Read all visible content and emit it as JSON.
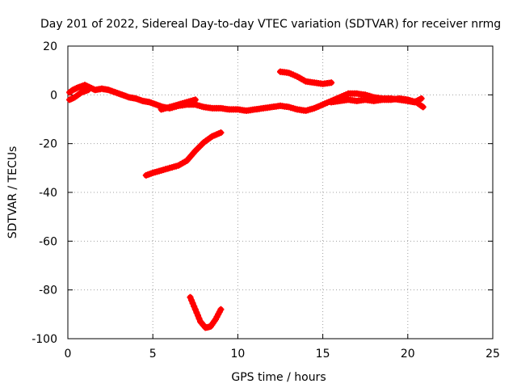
{
  "chart_data": {
    "type": "scatter",
    "title": "Day 201 of 2022, Sidereal Day-to-day VTEC variation (SDTVAR) for receiver nrmg",
    "xlabel": "GPS time / hours",
    "ylabel": "SDTVAR / TECUs",
    "xlim": [
      0,
      25
    ],
    "ylim": [
      -100,
      20
    ],
    "xticks": [
      0,
      5,
      10,
      15,
      20,
      25
    ],
    "yticks": [
      -100,
      -80,
      -60,
      -40,
      -20,
      0,
      20
    ],
    "grid": true,
    "marker": "+",
    "color": "#ff0000",
    "series": [
      {
        "name": "main-track",
        "x": [
          0.1,
          0.3,
          0.6,
          1.0,
          1.3,
          1.6,
          2.0,
          2.4,
          2.8,
          3.2,
          3.6,
          4.0,
          4.4,
          4.8,
          5.2,
          5.6,
          6.0,
          6.5,
          7.0,
          7.5,
          8.0,
          8.5,
          9.0,
          9.5,
          10.0,
          10.5,
          11.0,
          11.5,
          12.0,
          12.5,
          13.0,
          13.5,
          14.0,
          14.5,
          15.0,
          15.5,
          16.0,
          16.5,
          17.0,
          17.5,
          18.0,
          18.5,
          19.0,
          19.5,
          20.0,
          20.4,
          20.8
        ],
        "y": [
          1,
          2,
          3,
          4,
          3,
          2,
          2.5,
          2,
          1,
          0,
          -1,
          -1.5,
          -2.5,
          -3,
          -4,
          -5,
          -5.5,
          -4.5,
          -4,
          -4,
          -5,
          -5.5,
          -5.5,
          -6,
          -6,
          -6.5,
          -6,
          -5.5,
          -5,
          -4.5,
          -5,
          -6,
          -6.5,
          -5.5,
          -4,
          -2.5,
          -1,
          0.5,
          0.5,
          0,
          -1,
          -1.5,
          -1.5,
          -2,
          -2.5,
          -3,
          -1.5
        ]
      },
      {
        "name": "early-lower-band",
        "x": [
          0.1,
          0.4,
          0.8,
          1.2
        ],
        "y": [
          -2,
          -1,
          1,
          2
        ]
      },
      {
        "name": "evening-lower-band",
        "x": [
          5.5,
          6.0,
          6.5,
          7.0,
          7.5
        ],
        "y": [
          -6,
          -5,
          -4,
          -3,
          -2
        ]
      },
      {
        "name": "late-afternoon-loop",
        "x": [
          15.5,
          16.0,
          16.5,
          17.0,
          17.5,
          18.0,
          18.5,
          19.0,
          19.5,
          20.0,
          20.5,
          20.9
        ],
        "y": [
          -3,
          -2.5,
          -2,
          -2.5,
          -2,
          -2.5,
          -2,
          -2,
          -1.5,
          -2,
          -3,
          -5
        ]
      },
      {
        "name": "upper-arc",
        "x": [
          12.5,
          13.0,
          13.5,
          14.0,
          14.5,
          15.0,
          15.5
        ],
        "y": [
          9.5,
          9,
          7.5,
          5.5,
          5,
          4.5,
          5
        ]
      },
      {
        "name": "rising-segment",
        "x": [
          4.6,
          5.0,
          5.5,
          6.0,
          6.5,
          7.0,
          7.5,
          8.0,
          8.5,
          9.0
        ],
        "y": [
          -33,
          -32,
          -31,
          -30,
          -29,
          -27,
          -23,
          -19.5,
          -17,
          -15.5
        ]
      },
      {
        "name": "deep-dip",
        "x": [
          7.2,
          7.5,
          7.8,
          8.1,
          8.4,
          8.7,
          9.0
        ],
        "y": [
          -83,
          -88,
          -93,
          -95.5,
          -95,
          -92,
          -88
        ]
      }
    ]
  }
}
